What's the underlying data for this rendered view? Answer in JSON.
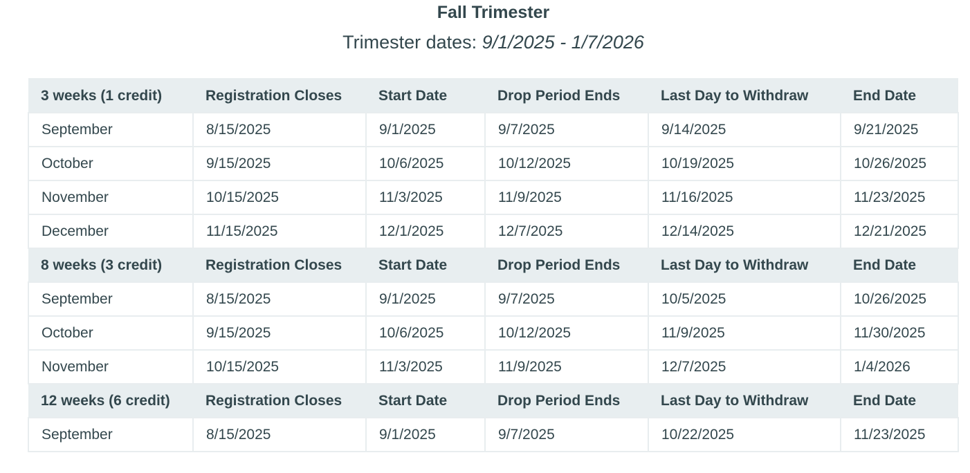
{
  "title": "Fall Trimester",
  "subtitle_label": "Trimester dates: ",
  "subtitle_dates": "9/1/2025 - 1/7/2026",
  "columns": [
    "Registration Closes",
    "Start Date",
    "Drop Period Ends",
    "Last Day to Withdraw",
    "End Date"
  ],
  "sections": [
    {
      "label": "3 weeks (1 credit)",
      "rows": [
        [
          "September",
          "8/15/2025",
          "9/1/2025",
          "9/7/2025",
          "9/14/2025",
          "9/21/2025"
        ],
        [
          "October",
          "9/15/2025",
          "10/6/2025",
          "10/12/2025",
          "10/19/2025",
          "10/26/2025"
        ],
        [
          "November",
          "10/15/2025",
          "11/3/2025",
          "11/9/2025",
          "11/16/2025",
          "11/23/2025"
        ],
        [
          "December",
          "11/15/2025",
          "12/1/2025",
          "12/7/2025",
          "12/14/2025",
          "12/21/2025"
        ]
      ]
    },
    {
      "label": "8 weeks (3 credit)",
      "rows": [
        [
          "September",
          "8/15/2025",
          "9/1/2025",
          "9/7/2025",
          "10/5/2025",
          "10/26/2025"
        ],
        [
          "October",
          "9/15/2025",
          "10/6/2025",
          "10/12/2025",
          "11/9/2025",
          "11/30/2025"
        ],
        [
          "November",
          "10/15/2025",
          "11/3/2025",
          "11/9/2025",
          "12/7/2025",
          "1/4/2026"
        ]
      ]
    },
    {
      "label": "12 weeks (6 credit)",
      "rows": [
        [
          "September",
          "8/15/2025",
          "9/1/2025",
          "9/7/2025",
          "10/22/2025",
          "11/23/2025"
        ]
      ]
    }
  ]
}
